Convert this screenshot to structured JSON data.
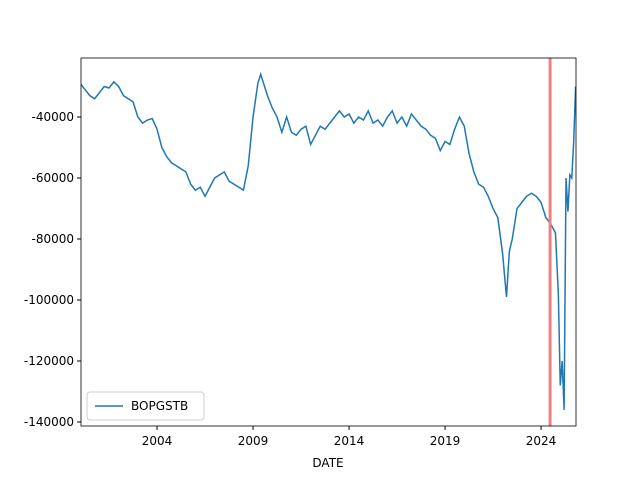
{
  "chart_data": {
    "type": "line",
    "xlabel": "DATE",
    "x": [
      2000.0,
      2000.25,
      2000.5,
      2000.75,
      2001.0,
      2001.25,
      2001.5,
      2001.75,
      2002.0,
      2002.25,
      2002.5,
      2002.75,
      2003.0,
      2003.25,
      2003.5,
      2003.75,
      2004.0,
      2004.25,
      2004.5,
      2004.75,
      2005.0,
      2005.25,
      2005.5,
      2005.75,
      2006.0,
      2006.25,
      2006.5,
      2006.75,
      2007.0,
      2007.25,
      2007.5,
      2007.75,
      2008.0,
      2008.25,
      2008.5,
      2008.75,
      2009.0,
      2009.25,
      2009.4,
      2009.75,
      2010.0,
      2010.25,
      2010.5,
      2010.75,
      2011.0,
      2011.25,
      2011.5,
      2011.75,
      2012.0,
      2012.25,
      2012.5,
      2012.75,
      2013.0,
      2013.25,
      2013.5,
      2013.75,
      2014.0,
      2014.25,
      2014.5,
      2014.75,
      2015.0,
      2015.25,
      2015.5,
      2015.75,
      2016.0,
      2016.25,
      2016.5,
      2016.75,
      2017.0,
      2017.25,
      2017.5,
      2017.75,
      2018.0,
      2018.25,
      2018.5,
      2018.75,
      2019.0,
      2019.25,
      2019.5,
      2019.75,
      2020.0,
      2020.25,
      2020.5,
      2020.75,
      2021.0,
      2021.25,
      2021.5,
      2021.75,
      2022.0,
      2022.2,
      2022.35,
      2022.5,
      2022.75,
      2023.0,
      2023.25,
      2023.5,
      2023.75,
      2024.0,
      2024.25,
      2024.5,
      2024.75,
      2024.9,
      2025.0,
      2025.1,
      2025.2,
      2025.3,
      2025.4,
      2025.5,
      2025.6,
      2025.7,
      2025.8
    ],
    "series": [
      {
        "name": "BOPGSTB",
        "color": "#1f77b4",
        "values": [
          -29000,
          -31000,
          -33000,
          -34000,
          -32000,
          -30000,
          -30500,
          -28500,
          -30000,
          -33000,
          -34000,
          -35000,
          -40000,
          -42000,
          -41000,
          -40500,
          -44000,
          -50000,
          -53000,
          -55000,
          -56000,
          -57000,
          -58000,
          -62000,
          -64000,
          -63000,
          -66000,
          -63000,
          -60000,
          -59000,
          -58000,
          -61000,
          -62000,
          -63000,
          -64000,
          -56000,
          -40000,
          -29000,
          -26000,
          -33000,
          -37000,
          -40000,
          -45000,
          -40000,
          -45000,
          -46000,
          -44000,
          -43000,
          -49000,
          -46000,
          -43000,
          -44000,
          -42000,
          -40000,
          -38000,
          -40000,
          -39000,
          -42000,
          -40000,
          -41000,
          -38000,
          -42000,
          -41000,
          -43000,
          -40000,
          -38000,
          -42000,
          -40000,
          -43000,
          -39000,
          -41000,
          -43000,
          -44000,
          -46000,
          -47000,
          -51000,
          -48000,
          -49000,
          -44000,
          -40000,
          -43000,
          -52000,
          -58000,
          -62000,
          -63000,
          -66000,
          -70000,
          -73000,
          -85000,
          -99000,
          -84000,
          -80000,
          -70000,
          -68000,
          -66000,
          -65000,
          -66000,
          -68000,
          -73000,
          -75000,
          -78000,
          -98000,
          -128000,
          -120000,
          -136000,
          -60000,
          -71000,
          -59000,
          -60000,
          -48000,
          -30000
        ]
      }
    ],
    "xlim": [
      2000.04,
      2025.82
    ],
    "xticks": [
      2004,
      2009,
      2014,
      2019,
      2024
    ],
    "ylim": [
      -141311,
      -20656
    ],
    "yticks": [
      -140000,
      -120000,
      -100000,
      -80000,
      -60000,
      -40000
    ],
    "vline": {
      "x": 2024.47,
      "color": "#f08080"
    },
    "legend": "lower left",
    "grid": false
  }
}
